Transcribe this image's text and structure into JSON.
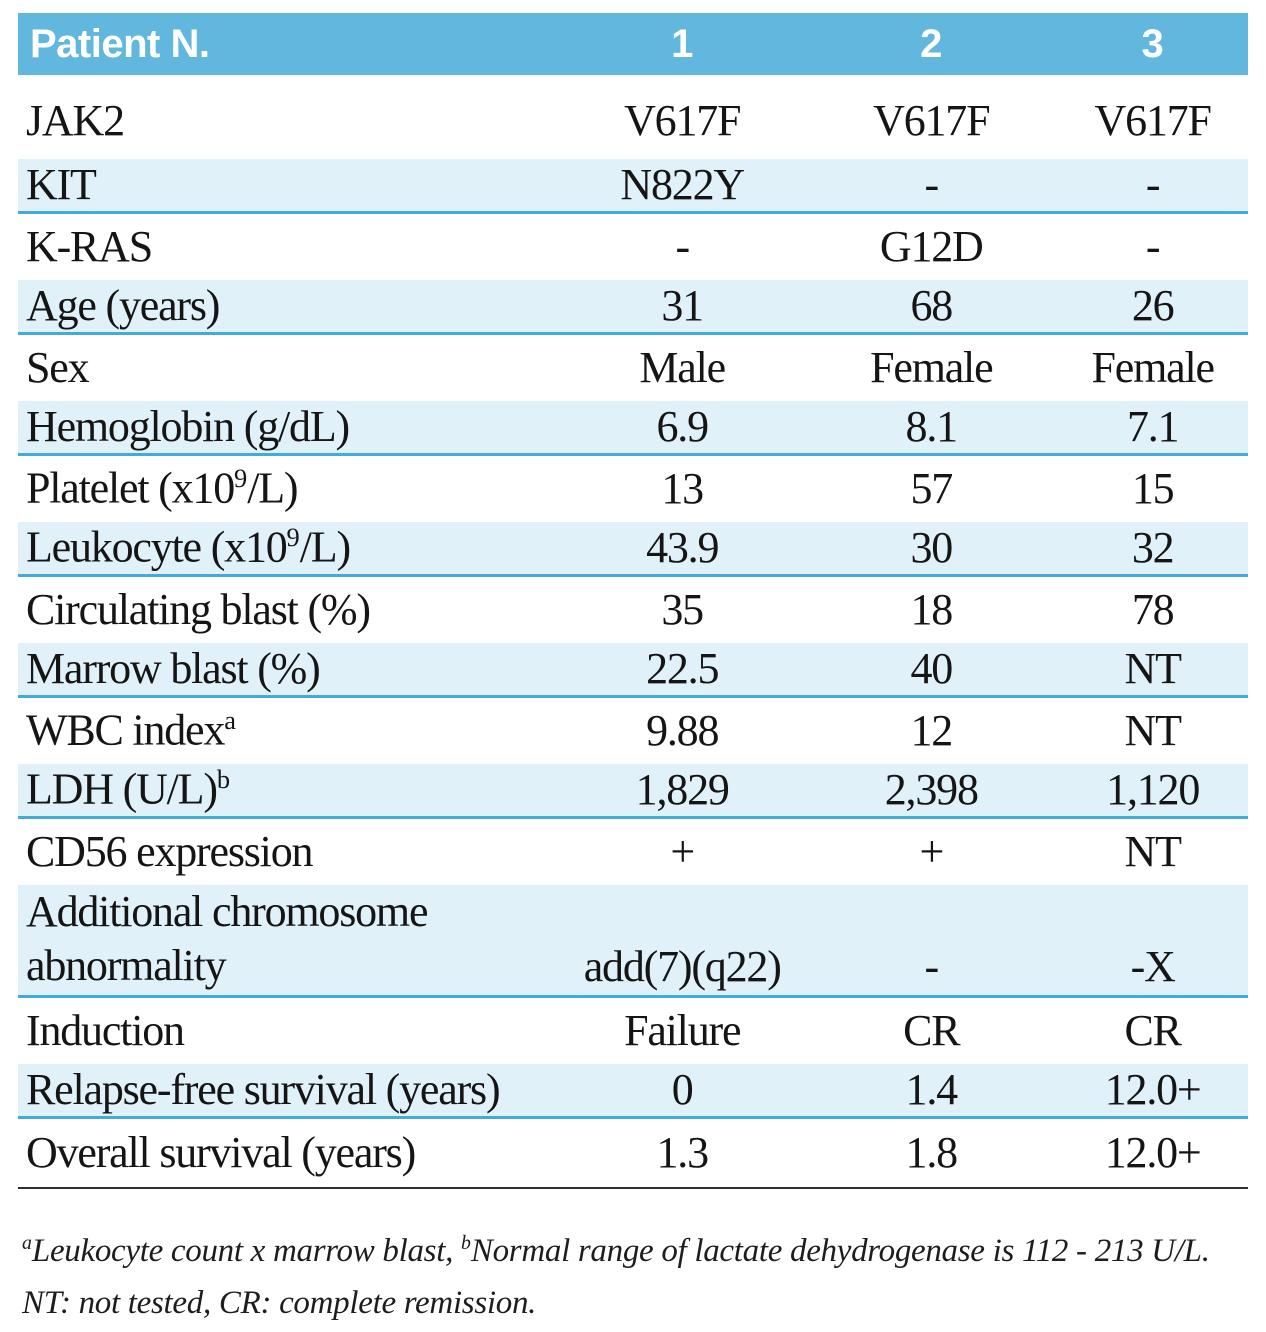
{
  "colors": {
    "header-blue": "#62B7DF",
    "row-shade": "#E0F1FA",
    "divider-blue": "#41ABDB",
    "border-dark": "#2E2E2E"
  },
  "table": {
    "header": {
      "label": "Patient N.",
      "col1": "1",
      "col2": "2",
      "col3": "3"
    },
    "rows": {
      "jak2": {
        "label": "JAK2",
        "v1": "V617F",
        "v2": "V617F",
        "v3": "V617F"
      },
      "kit": {
        "label": "KIT",
        "v1": "N822Y",
        "v2": "-",
        "v3": "-"
      },
      "kras": {
        "label": "K-RAS",
        "v1": "-",
        "v2": "G12D",
        "v3": "-"
      },
      "age": {
        "label": "Age (years)",
        "v1": "31",
        "v2": "68",
        "v3": "26"
      },
      "sex": {
        "label": "Sex",
        "v1": "Male",
        "v2": "Female",
        "v3": "Female"
      },
      "hemoglobin": {
        "label": "Hemoglobin (g/dL)",
        "v1": "6.9",
        "v2": "8.1",
        "v3": "7.1"
      },
      "platelet": {
        "label": "Platelet (x10",
        "label_sup": "9",
        "label_post": "/L)",
        "v1": "13",
        "v2": "57",
        "v3": "15"
      },
      "leukocyte": {
        "label": "Leukocyte (x10",
        "label_sup": "9",
        "label_post": "/L)",
        "v1": "43.9",
        "v2": "30",
        "v3": "32"
      },
      "circblast": {
        "label": "Circulating blast (%)",
        "v1": "35",
        "v2": "18",
        "v3": "78"
      },
      "marrowblast": {
        "label": "Marrow blast (%)",
        "v1": "22.5",
        "v2": "40",
        "v3": "NT"
      },
      "wbcindex": {
        "label": "WBC index",
        "label_sup": "a",
        "label_post": "",
        "v1": "9.88",
        "v2": "12",
        "v3": "NT"
      },
      "ldh": {
        "label": "LDH (U/L)",
        "label_sup": "b",
        "label_post": "",
        "v1": "1,829",
        "v2": "2,398",
        "v3": "1,120"
      },
      "cd56": {
        "label": "CD56 expression",
        "v1": "+",
        "v2": "+",
        "v3": "NT"
      },
      "chromosome": {
        "label": "Additional chromosome",
        "label_line2": "abnormality",
        "v1": "add(7)(q22)",
        "v2": "-",
        "v3": "-X"
      },
      "induction": {
        "label": "Induction",
        "v1": "Failure",
        "v2": "CR",
        "v3": "CR"
      },
      "rfs": {
        "label": "Relapse-free survival (years)",
        "v1": "0",
        "v2": "1.4",
        "v3": "12.0+"
      },
      "os": {
        "label": "Overall survival (years)",
        "v1": "1.3",
        "v2": "1.8",
        "v3": "12.0+"
      }
    },
    "footnote": {
      "sup_a": "a",
      "part_a": "Leukocyte count x marrow blast, ",
      "sup_b": "b",
      "part_b": "Normal range of lactate dehydrogenase is 112 - 213 U/L. NT: not tested, CR: complete remission."
    }
  }
}
